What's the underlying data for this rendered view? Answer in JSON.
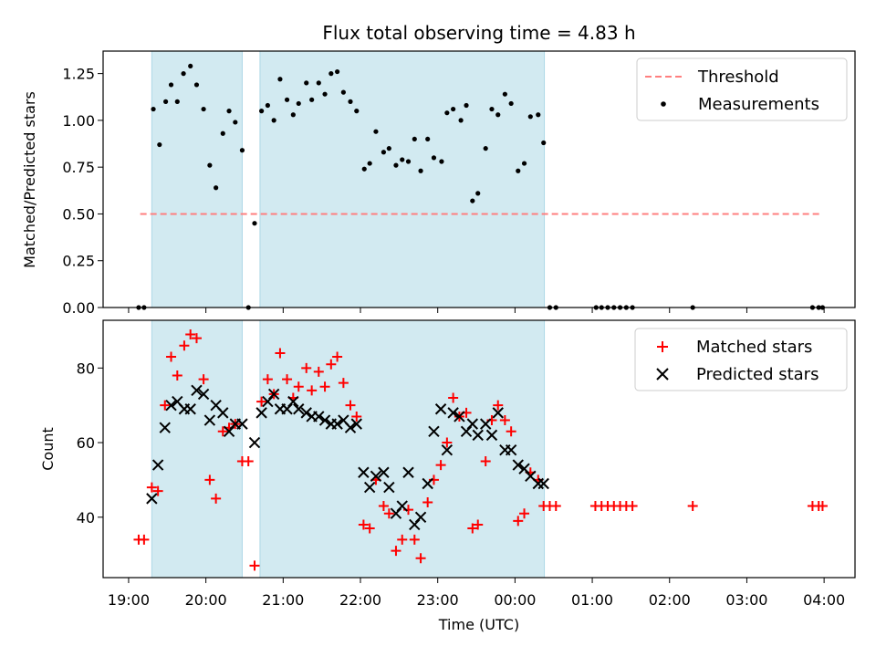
{
  "chart_data": {
    "title": "Flux total observing time = 4.83 h",
    "xlabel": "Time (UTC)",
    "x_ticks": [
      {
        "hour": 19,
        "label": "19:00"
      },
      {
        "hour": 20,
        "label": "20:00"
      },
      {
        "hour": 21,
        "label": "21:00"
      },
      {
        "hour": 22,
        "label": "22:00"
      },
      {
        "hour": 23,
        "label": "23:00"
      },
      {
        "hour": 24,
        "label": "00:00"
      },
      {
        "hour": 25,
        "label": "01:00"
      },
      {
        "hour": 26,
        "label": "02:00"
      },
      {
        "hour": 27,
        "label": "03:00"
      },
      {
        "hour": 28,
        "label": "04:00"
      }
    ],
    "xlim": [
      18.67,
      28.4
    ],
    "observing_windows": [
      [
        19.3,
        20.47
      ],
      [
        20.7,
        24.38
      ]
    ],
    "window_color": "#add8e6",
    "panels": [
      {
        "type": "scatter",
        "ylabel": "Matched/Predicted stars",
        "ylim": [
          0,
          1.37
        ],
        "y_ticks": [
          {
            "value": 0.0,
            "label": "0.00"
          },
          {
            "value": 0.25,
            "label": "0.25"
          },
          {
            "value": 0.5,
            "label": "0.50"
          },
          {
            "value": 0.75,
            "label": "0.75"
          },
          {
            "value": 1.0,
            "label": "1.00"
          },
          {
            "value": 1.25,
            "label": "1.25"
          }
        ],
        "threshold": {
          "name": "Threshold",
          "value": 0.5,
          "x_range": [
            19.15,
            27.98
          ],
          "color": "#ff7f7f"
        },
        "series": [
          {
            "name": "Measurements",
            "color": "#000000",
            "marker": "dot",
            "points": [
              [
                19.13,
                0
              ],
              [
                19.2,
                0
              ],
              [
                19.32,
                1.06
              ],
              [
                19.4,
                0.87
              ],
              [
                19.48,
                1.1
              ],
              [
                19.55,
                1.19
              ],
              [
                19.63,
                1.1
              ],
              [
                19.71,
                1.25
              ],
              [
                19.8,
                1.29
              ],
              [
                19.88,
                1.19
              ],
              [
                19.97,
                1.06
              ],
              [
                20.05,
                0.76
              ],
              [
                20.13,
                0.64
              ],
              [
                20.22,
                0.93
              ],
              [
                20.3,
                1.05
              ],
              [
                20.38,
                0.99
              ],
              [
                20.47,
                0.84
              ],
              [
                20.55,
                0
              ],
              [
                20.63,
                0.45
              ],
              [
                20.72,
                1.05
              ],
              [
                20.8,
                1.08
              ],
              [
                20.88,
                1.0
              ],
              [
                20.96,
                1.22
              ],
              [
                21.05,
                1.11
              ],
              [
                21.13,
                1.03
              ],
              [
                21.2,
                1.09
              ],
              [
                21.3,
                1.2
              ],
              [
                21.37,
                1.11
              ],
              [
                21.46,
                1.2
              ],
              [
                21.54,
                1.14
              ],
              [
                21.62,
                1.25
              ],
              [
                21.7,
                1.26
              ],
              [
                21.78,
                1.15
              ],
              [
                21.87,
                1.1
              ],
              [
                21.95,
                1.05
              ],
              [
                22.05,
                0.74
              ],
              [
                22.12,
                0.77
              ],
              [
                22.2,
                0.94
              ],
              [
                22.3,
                0.83
              ],
              [
                22.37,
                0.85
              ],
              [
                22.46,
                0.76
              ],
              [
                22.54,
                0.79
              ],
              [
                22.62,
                0.78
              ],
              [
                22.7,
                0.9
              ],
              [
                22.78,
                0.73
              ],
              [
                22.87,
                0.9
              ],
              [
                22.95,
                0.8
              ],
              [
                23.05,
                0.78
              ],
              [
                23.12,
                1.04
              ],
              [
                23.2,
                1.06
              ],
              [
                23.3,
                1.0
              ],
              [
                23.37,
                1.08
              ],
              [
                23.45,
                0.57
              ],
              [
                23.52,
                0.61
              ],
              [
                23.62,
                0.85
              ],
              [
                23.7,
                1.06
              ],
              [
                23.78,
                1.03
              ],
              [
                23.87,
                1.14
              ],
              [
                23.95,
                1.09
              ],
              [
                24.04,
                0.73
              ],
              [
                24.12,
                0.77
              ],
              [
                24.2,
                1.02
              ],
              [
                24.3,
                1.03
              ],
              [
                24.37,
                0.88
              ],
              [
                24.45,
                0
              ],
              [
                24.53,
                0
              ],
              [
                25.05,
                0
              ],
              [
                25.12,
                0
              ],
              [
                25.2,
                0
              ],
              [
                25.28,
                0
              ],
              [
                25.36,
                0
              ],
              [
                25.44,
                0
              ],
              [
                25.52,
                0
              ],
              [
                26.3,
                0
              ],
              [
                27.85,
                0
              ],
              [
                27.93,
                0
              ],
              [
                27.98,
                0
              ]
            ]
          }
        ],
        "legend": {
          "position": "top-right",
          "entries": [
            "Threshold",
            "Measurements"
          ]
        }
      },
      {
        "type": "scatter",
        "ylabel": "Count",
        "ylim": [
          23.8,
          92.8
        ],
        "y_ticks": [
          {
            "value": 40,
            "label": "40"
          },
          {
            "value": 60,
            "label": "60"
          },
          {
            "value": 80,
            "label": "80"
          }
        ],
        "series": [
          {
            "name": "Matched stars",
            "color": "#ff0000",
            "marker": "plus",
            "points": [
              [
                19.13,
                34
              ],
              [
                19.2,
                34
              ],
              [
                19.3,
                48
              ],
              [
                19.38,
                47
              ],
              [
                19.47,
                70
              ],
              [
                19.55,
                83
              ],
              [
                19.63,
                78
              ],
              [
                19.72,
                86
              ],
              [
                19.8,
                89
              ],
              [
                19.88,
                88
              ],
              [
                19.97,
                77
              ],
              [
                20.05,
                50
              ],
              [
                20.13,
                45
              ],
              [
                20.22,
                63
              ],
              [
                20.3,
                64
              ],
              [
                20.38,
                65
              ],
              [
                20.47,
                55
              ],
              [
                20.55,
                55
              ],
              [
                20.63,
                27
              ],
              [
                20.72,
                71
              ],
              [
                20.8,
                77
              ],
              [
                20.88,
                73
              ],
              [
                20.96,
                84
              ],
              [
                21.05,
                77
              ],
              [
                21.13,
                72
              ],
              [
                21.2,
                75
              ],
              [
                21.3,
                80
              ],
              [
                21.37,
                74
              ],
              [
                21.46,
                79
              ],
              [
                21.54,
                75
              ],
              [
                21.62,
                81
              ],
              [
                21.7,
                83
              ],
              [
                21.78,
                76
              ],
              [
                21.87,
                70
              ],
              [
                21.95,
                67
              ],
              [
                22.04,
                38
              ],
              [
                22.12,
                37
              ],
              [
                22.2,
                50
              ],
              [
                22.3,
                43
              ],
              [
                22.37,
                41
              ],
              [
                22.46,
                31
              ],
              [
                22.54,
                34
              ],
              [
                22.62,
                42
              ],
              [
                22.7,
                34
              ],
              [
                22.78,
                29
              ],
              [
                22.87,
                44
              ],
              [
                22.95,
                50
              ],
              [
                23.04,
                54
              ],
              [
                23.12,
                60
              ],
              [
                23.2,
                72
              ],
              [
                23.28,
                67
              ],
              [
                23.37,
                68
              ],
              [
                23.45,
                37
              ],
              [
                23.52,
                38
              ],
              [
                23.62,
                55
              ],
              [
                23.7,
                66
              ],
              [
                23.78,
                70
              ],
              [
                23.87,
                66
              ],
              [
                23.95,
                63
              ],
              [
                24.04,
                39
              ],
              [
                24.12,
                41
              ],
              [
                24.2,
                52
              ],
              [
                24.3,
                50
              ],
              [
                24.37,
                43
              ],
              [
                24.45,
                43
              ],
              [
                24.53,
                43
              ],
              [
                25.04,
                43
              ],
              [
                25.12,
                43
              ],
              [
                25.2,
                43
              ],
              [
                25.28,
                43
              ],
              [
                25.36,
                43
              ],
              [
                25.44,
                43
              ],
              [
                25.52,
                43
              ],
              [
                26.3,
                43
              ],
              [
                27.85,
                43
              ],
              [
                27.93,
                43
              ],
              [
                27.98,
                43
              ]
            ]
          },
          {
            "name": "Predicted stars",
            "color": "#000000",
            "marker": "x",
            "points": [
              [
                19.3,
                45
              ],
              [
                19.38,
                54
              ],
              [
                19.47,
                64
              ],
              [
                19.55,
                70
              ],
              [
                19.63,
                71
              ],
              [
                19.72,
                69
              ],
              [
                19.8,
                69
              ],
              [
                19.88,
                74
              ],
              [
                19.97,
                73
              ],
              [
                20.05,
                66
              ],
              [
                20.13,
                70
              ],
              [
                20.22,
                68
              ],
              [
                20.3,
                63
              ],
              [
                20.38,
                65
              ],
              [
                20.47,
                65
              ],
              [
                20.63,
                60
              ],
              [
                20.72,
                68
              ],
              [
                20.8,
                71
              ],
              [
                20.88,
                73
              ],
              [
                20.96,
                69
              ],
              [
                21.05,
                69
              ],
              [
                21.13,
                71
              ],
              [
                21.2,
                69
              ],
              [
                21.3,
                68
              ],
              [
                21.37,
                67
              ],
              [
                21.46,
                67
              ],
              [
                21.54,
                66
              ],
              [
                21.62,
                65
              ],
              [
                21.7,
                65
              ],
              [
                21.78,
                66
              ],
              [
                21.87,
                64
              ],
              [
                21.95,
                65
              ],
              [
                22.04,
                52
              ],
              [
                22.12,
                48
              ],
              [
                22.2,
                51
              ],
              [
                22.3,
                52
              ],
              [
                22.37,
                48
              ],
              [
                22.46,
                41
              ],
              [
                22.54,
                43
              ],
              [
                22.62,
                52
              ],
              [
                22.7,
                38
              ],
              [
                22.78,
                40
              ],
              [
                22.87,
                49
              ],
              [
                22.95,
                63
              ],
              [
                23.04,
                69
              ],
              [
                23.12,
                58
              ],
              [
                23.2,
                68
              ],
              [
                23.28,
                67
              ],
              [
                23.37,
                63
              ],
              [
                23.45,
                65
              ],
              [
                23.52,
                62
              ],
              [
                23.62,
                65
              ],
              [
                23.7,
                62
              ],
              [
                23.78,
                68
              ],
              [
                23.87,
                58
              ],
              [
                23.95,
                58
              ],
              [
                24.04,
                54
              ],
              [
                24.12,
                53
              ],
              [
                24.2,
                51
              ],
              [
                24.3,
                49
              ],
              [
                24.37,
                49
              ]
            ]
          }
        ],
        "legend": {
          "position": "top-right",
          "entries": [
            "Matched stars",
            "Predicted stars"
          ]
        }
      }
    ]
  }
}
